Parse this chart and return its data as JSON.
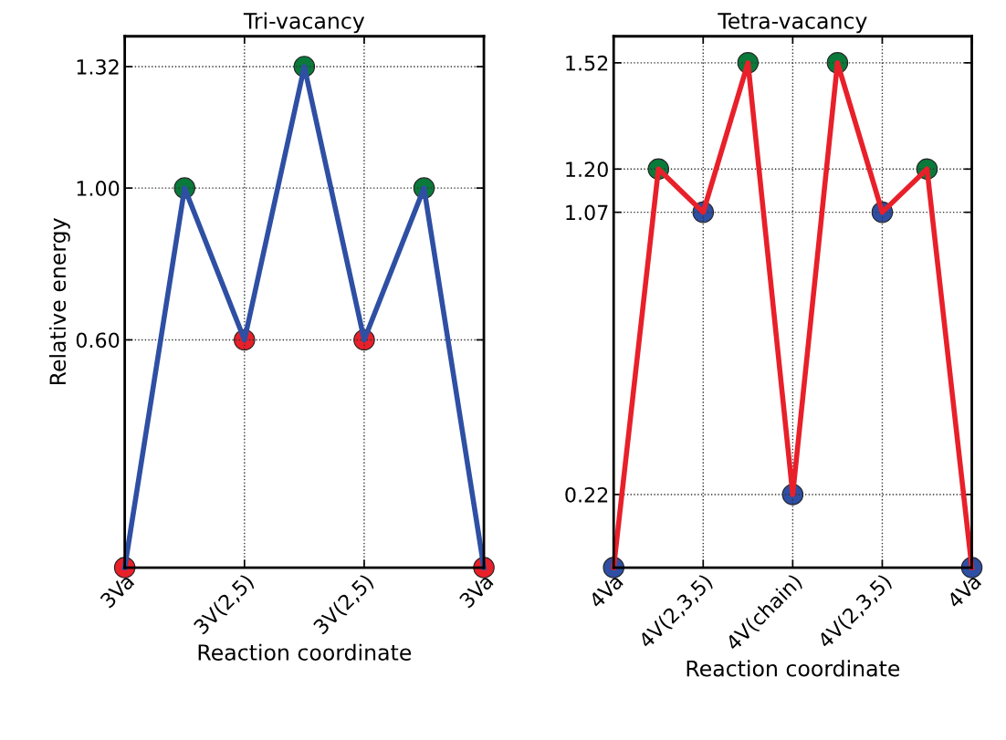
{
  "chart_data": [
    {
      "type": "line",
      "title": "Tri-vacancy",
      "xlabel": "Reaction coordinate",
      "ylabel": "Relative energy",
      "categories": [
        "3Va",
        null,
        "3V(2,5)",
        null,
        "3V(2,5)",
        null,
        "3Va"
      ],
      "ylim": [
        0,
        1.4
      ],
      "yticks": [
        {
          "value": 0.6,
          "label": "0.60"
        },
        {
          "value": 1.0,
          "label": "1.00"
        },
        {
          "value": 1.32,
          "label": "1.32"
        }
      ],
      "grid": true,
      "marker": "circle",
      "line_style": "solid",
      "series": [
        {
          "color": "#2e4fa3",
          "values": [
            0,
            1.0,
            0.6,
            1.32,
            0.6,
            1.0,
            0
          ],
          "colors": [
            "#e8202a",
            "#0a7a3a",
            "#e8202a",
            "#0a7a3a",
            "#e8202a",
            "#0a7a3a",
            "#e8202a"
          ]
        }
      ]
    },
    {
      "type": "line",
      "title": "Tetra-vacancy",
      "xlabel": "Reaction coordinate",
      "categories": [
        "4Va",
        null,
        "4V(2,3,5)",
        null,
        "4V(chain)",
        null,
        "4V(2,3,5)",
        null,
        "4Va"
      ],
      "ylim": [
        0,
        1.6
      ],
      "yticks": [
        {
          "value": 0.22,
          "label": "0.22"
        },
        {
          "value": 1.07,
          "label": "1.07"
        },
        {
          "value": 1.2,
          "label": "1.20"
        },
        {
          "value": 1.52,
          "label": "1.52"
        }
      ],
      "grid": true,
      "marker": "circle",
      "line_style": "solid",
      "series": [
        {
          "color": "#e8202a",
          "values": [
            0,
            1.2,
            1.07,
            1.52,
            0.22,
            1.52,
            1.07,
            1.2,
            0
          ],
          "colors": [
            "#2e4fa3",
            "#0a7a3a",
            "#2e4fa3",
            "#0a7a3a",
            "#2e4fa3",
            "#0a7a3a",
            "#2e4fa3",
            "#0a7a3a",
            "#2e4fa3"
          ]
        }
      ]
    }
  ]
}
